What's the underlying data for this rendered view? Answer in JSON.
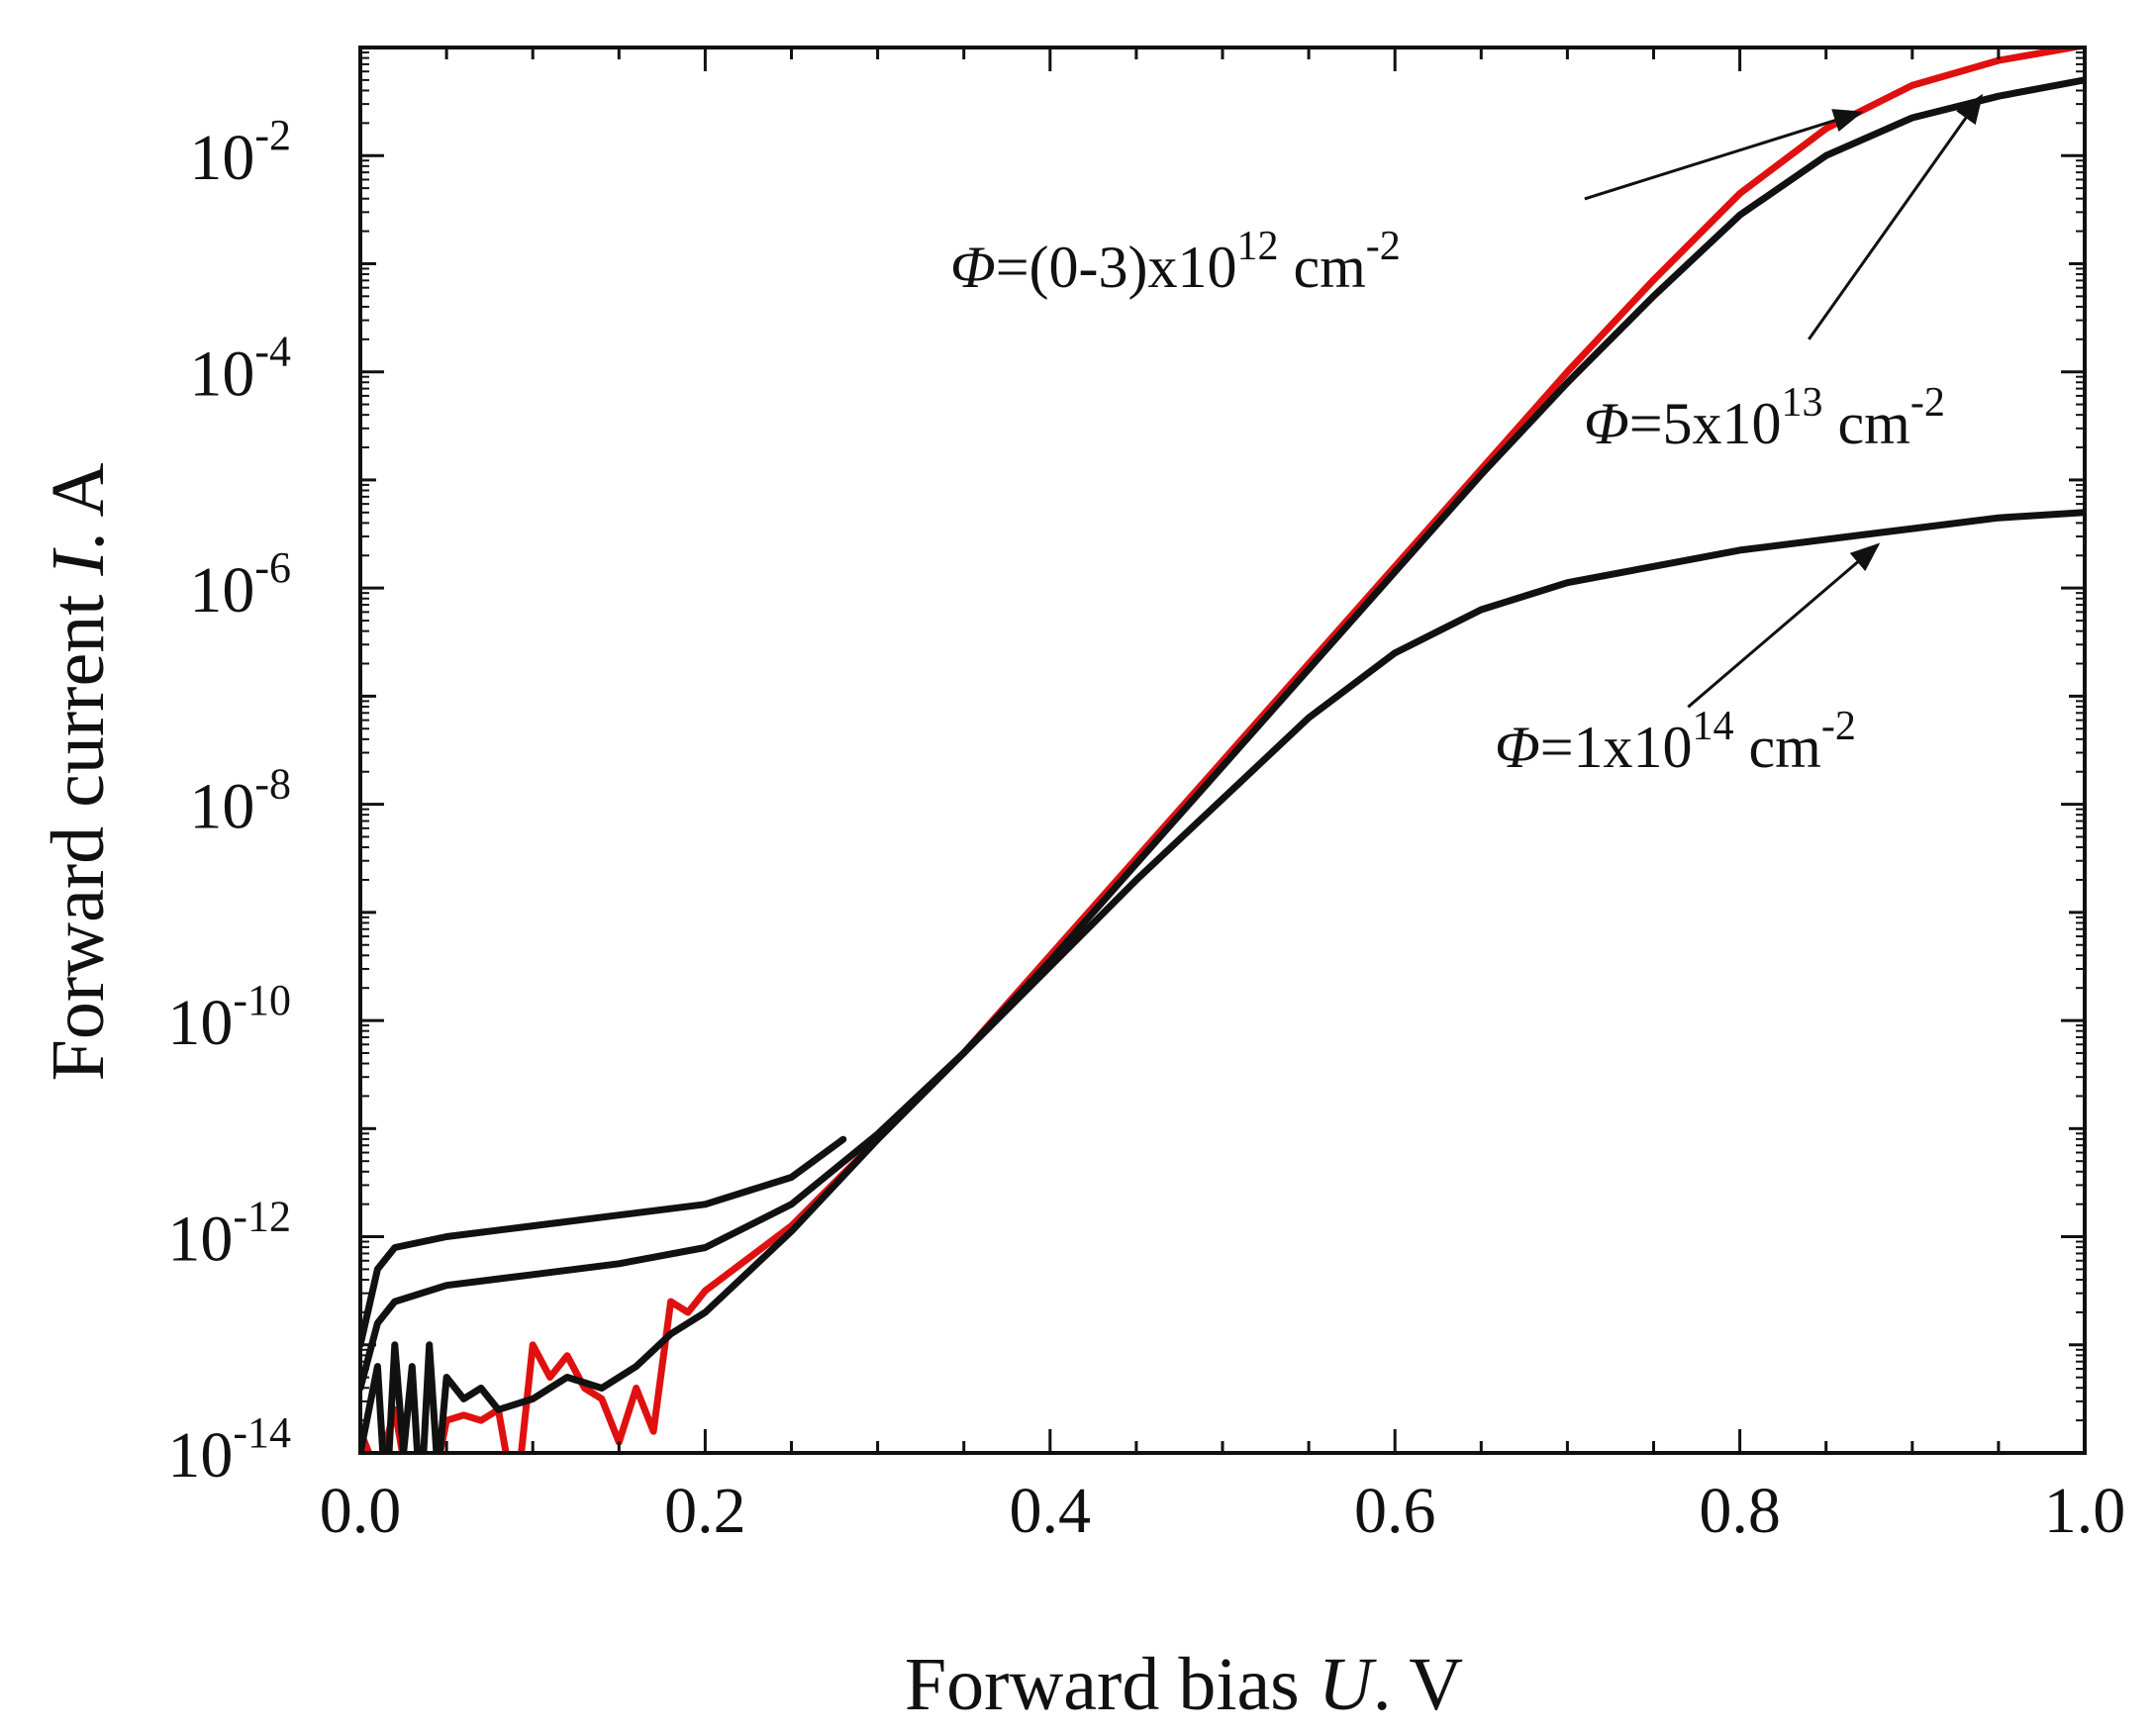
{
  "chart_data": {
    "type": "line",
    "title": "",
    "xlabel": {
      "prefix": "Forward bias ",
      "symbol": "U",
      "suffix": ". V"
    },
    "ylabel": {
      "prefix": "Forward current ",
      "symbol": "I",
      "suffix": ". A"
    },
    "xscale": "linear",
    "yscale": "log",
    "xlim": [
      0.0,
      1.0
    ],
    "ylim_exponents": [
      -14,
      -1
    ],
    "grid": false,
    "x_ticks": [
      {
        "value": 0.0,
        "label": "0.0"
      },
      {
        "value": 0.2,
        "label": "0.2"
      },
      {
        "value": 0.4,
        "label": "0.4"
      },
      {
        "value": 0.6,
        "label": "0.6"
      },
      {
        "value": 0.8,
        "label": "0.8"
      },
      {
        "value": 1.0,
        "label": "1.0"
      }
    ],
    "y_ticks": [
      {
        "exponent": -14,
        "base": "10",
        "sup": "-14"
      },
      {
        "exponent": -12,
        "base": "10",
        "sup": "-12"
      },
      {
        "exponent": -10,
        "base": "10",
        "sup": "-10"
      },
      {
        "exponent": -8,
        "base": "10",
        "sup": "-8"
      },
      {
        "exponent": -6,
        "base": "10",
        "sup": "-6"
      },
      {
        "exponent": -4,
        "base": "10",
        "sup": "-4"
      },
      {
        "exponent": -2,
        "base": "10",
        "sup": "-2"
      }
    ],
    "series": [
      {
        "name": "Φ=(0-3)x10^12 cm^-2",
        "color": "#e01010",
        "x": [
          0.0,
          0.01,
          0.02,
          0.03,
          0.04,
          0.05,
          0.06,
          0.07,
          0.08,
          0.09,
          0.1,
          0.11,
          0.12,
          0.13,
          0.14,
          0.15,
          0.16,
          0.17,
          0.18,
          0.19,
          0.2,
          0.25,
          0.3,
          0.35,
          0.4,
          0.45,
          0.5,
          0.55,
          0.6,
          0.65,
          0.7,
          0.75,
          0.8,
          0.85,
          0.9,
          0.95,
          1.0
        ],
        "log10_y": [
          -13.8,
          -14.2,
          -13.6,
          -14.9,
          -14.6,
          -13.7,
          -13.65,
          -13.7,
          -13.6,
          -14.7,
          -13.0,
          -13.3,
          -13.1,
          -13.4,
          -13.5,
          -13.9,
          -13.4,
          -13.8,
          -12.6,
          -12.7,
          -12.5,
          -11.9,
          -11.1,
          -10.3,
          -9.4,
          -8.5,
          -7.6,
          -6.7,
          -5.8,
          -4.9,
          -4.0,
          -3.15,
          -2.35,
          -1.75,
          -1.35,
          -1.12,
          -0.98
        ]
      },
      {
        "name": "Φ=5x10^13 cm^-2",
        "color": "#111111",
        "x": [
          0.0,
          0.01,
          0.02,
          0.05,
          0.1,
          0.15,
          0.2,
          0.25,
          0.3,
          0.35,
          0.4,
          0.45,
          0.5,
          0.55,
          0.6,
          0.65,
          0.7,
          0.75,
          0.8,
          0.85,
          0.9,
          0.95,
          1.0
        ],
        "log10_y": [
          -13.4,
          -12.8,
          -12.6,
          -12.45,
          -12.35,
          -12.25,
          -12.1,
          -11.7,
          -11.05,
          -10.3,
          -9.45,
          -8.55,
          -7.65,
          -6.75,
          -5.85,
          -4.95,
          -4.1,
          -3.3,
          -2.55,
          -2.0,
          -1.65,
          -1.45,
          -1.3
        ]
      },
      {
        "name": "Φ=1x10^14 cm^-2 (upper pre-turn-on branch)",
        "color": "#111111",
        "x": [
          0.0,
          0.01,
          0.02,
          0.05,
          0.1,
          0.15,
          0.2,
          0.25,
          0.28
        ],
        "log10_y": [
          -13.0,
          -12.3,
          -12.1,
          -12.0,
          -11.9,
          -11.8,
          -11.7,
          -11.45,
          -11.1
        ]
      },
      {
        "name": "Φ=1x10^14 cm^-2",
        "color": "#111111",
        "x": [
          0.0,
          0.01,
          0.015,
          0.02,
          0.025,
          0.03,
          0.035,
          0.04,
          0.045,
          0.05,
          0.06,
          0.07,
          0.08,
          0.1,
          0.12,
          0.14,
          0.16,
          0.18,
          0.2,
          0.25,
          0.3,
          0.35,
          0.4,
          0.45,
          0.5,
          0.55,
          0.6,
          0.65,
          0.7,
          0.75,
          0.8,
          0.85,
          0.9,
          0.95,
          1.0
        ],
        "log10_y": [
          -14.0,
          -13.2,
          -14.6,
          -13.0,
          -14.0,
          -13.2,
          -14.6,
          -13.0,
          -14.2,
          -13.3,
          -13.5,
          -13.4,
          -13.6,
          -13.5,
          -13.3,
          -13.4,
          -13.2,
          -12.9,
          -12.7,
          -11.95,
          -11.1,
          -10.3,
          -9.5,
          -8.7,
          -7.95,
          -7.2,
          -6.6,
          -6.2,
          -5.95,
          -5.8,
          -5.65,
          -5.55,
          -5.45,
          -5.35,
          -5.3
        ]
      }
    ],
    "annotations": [
      {
        "id": "ann-low",
        "symbol": "Φ",
        "text": "=(0-3)x10",
        "sup1": "12",
        "mid": " cm",
        "sup2": "-2",
        "arrow_from": [
          0.71,
          -2.4
        ],
        "arrow_to": [
          0.87,
          -1.6
        ]
      },
      {
        "id": "ann-mid",
        "symbol": "Φ",
        "text": "=5x10",
        "sup1": "13",
        "mid": " cm",
        "sup2": "-2",
        "arrow_from": [
          0.84,
          -3.7
        ],
        "arrow_to": [
          0.94,
          -1.45
        ]
      },
      {
        "id": "ann-high",
        "symbol": "Φ",
        "text": "=1x10",
        "sup1": "14",
        "mid": " cm",
        "sup2": "-2",
        "arrow_from": [
          0.77,
          -7.1
        ],
        "arrow_to": [
          0.88,
          -5.6
        ]
      }
    ]
  }
}
